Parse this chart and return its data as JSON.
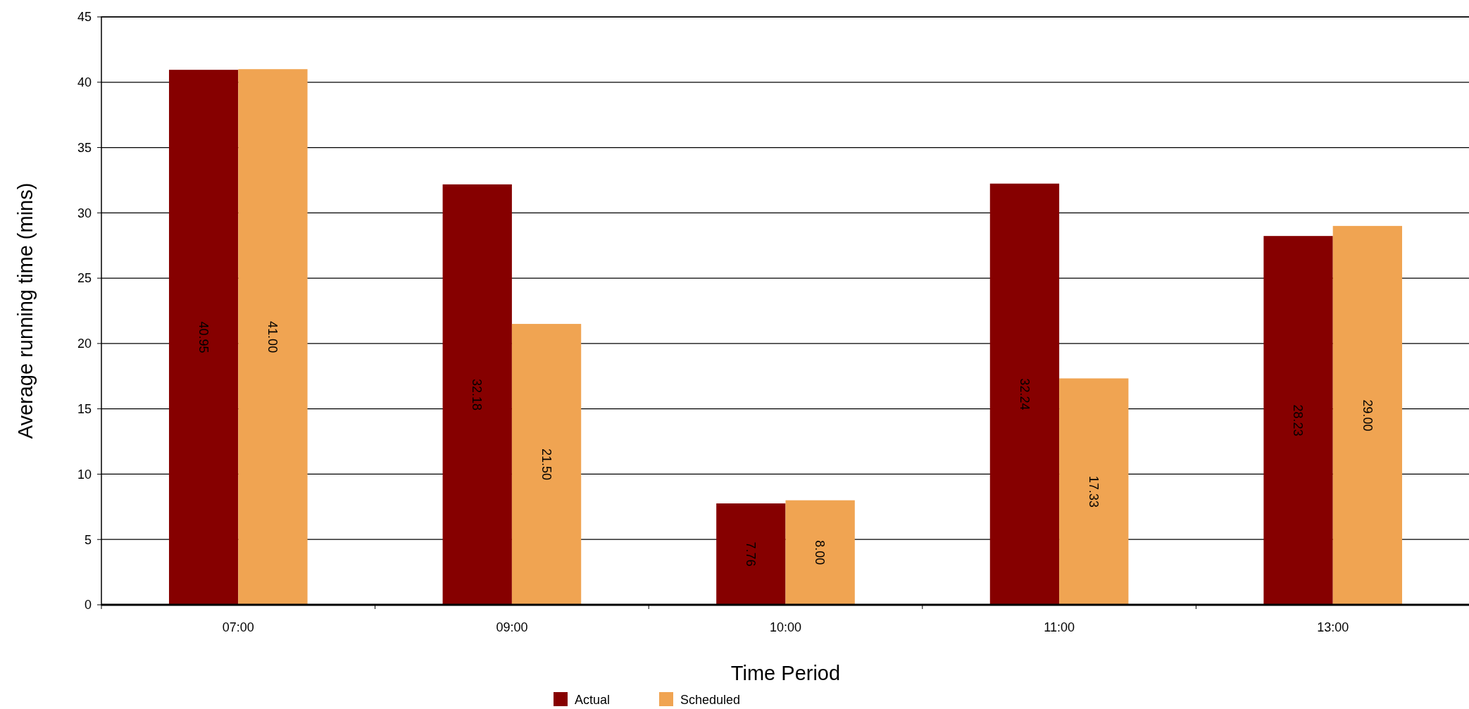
{
  "chart_data": {
    "type": "bar",
    "xlabel": "Time Period",
    "ylabel": "Average running time (mins)",
    "categories": [
      "07:00",
      "09:00",
      "10:00",
      "11:00",
      "13:00"
    ],
    "series": [
      {
        "name": "Actual",
        "color": "#860000",
        "values": [
          40.95,
          32.18,
          7.76,
          32.24,
          28.23
        ],
        "value_labels": [
          "40.95",
          "32.18",
          "7.76",
          "32.24",
          "28.23"
        ]
      },
      {
        "name": "Scheduled",
        "color": "#f0a452",
        "values": [
          41,
          21.5,
          8,
          17.33,
          29
        ],
        "value_labels": [
          "41.00",
          "21.50",
          "8.00",
          "17.33",
          "29.00"
        ]
      }
    ],
    "ylim": [
      0,
      45
    ],
    "yticks": [
      0,
      5,
      10,
      15,
      20,
      25,
      30,
      35,
      40,
      45
    ],
    "grid": "y",
    "legend": "bottom"
  }
}
